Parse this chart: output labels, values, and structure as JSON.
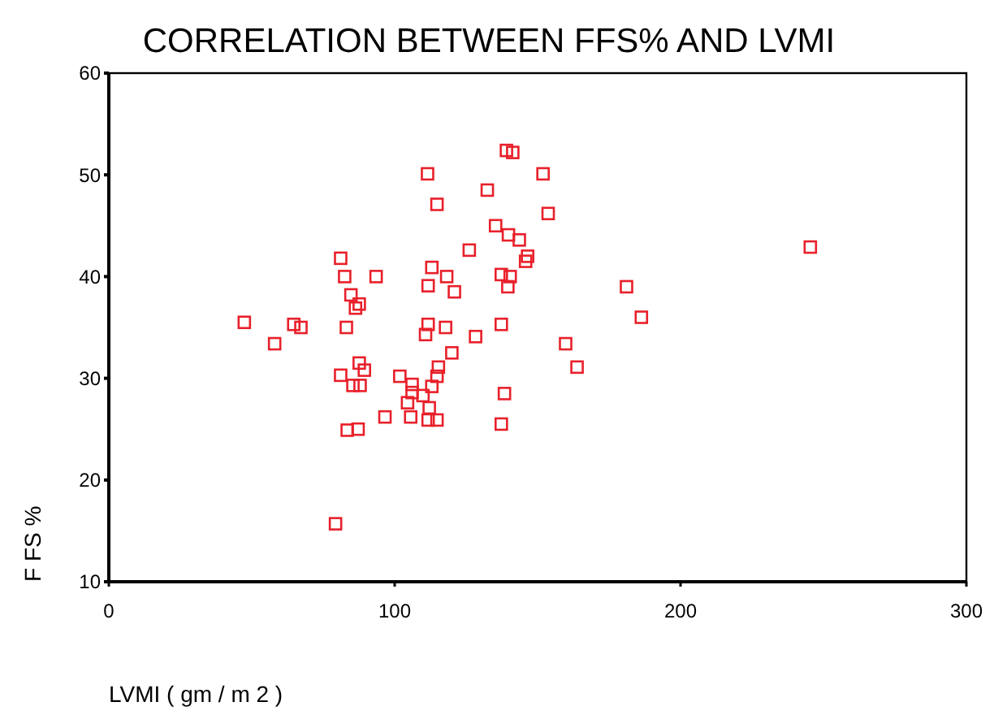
{
  "chart_data": {
    "type": "scatter",
    "title": "CORRELATION BETWEEN FFS% AND LVMI",
    "xlabel": "LVMI ( gm / m 2 )",
    "ylabel": "F FS %",
    "marker": "square",
    "grid": false,
    "xlim": [
      0,
      300
    ],
    "xticks": [
      0,
      100,
      200,
      300
    ],
    "ylim": [
      10,
      60
    ],
    "yticks": [
      10,
      20,
      30,
      40,
      50,
      60
    ],
    "series": [
      {
        "color": "#e8202a",
        "x": [
          47.4,
          58,
          64.7,
          67.2,
          81.1,
          82.5,
          93.5,
          84.7,
          87.6,
          86.3,
          83.1,
          81.1,
          87.6,
          89.4,
          85.4,
          87.9,
          83.4,
          87.2,
          79.3,
          96.6,
          101.8,
          106.1,
          106.1,
          104.5,
          109.9,
          105.6,
          112.1,
          111.7,
          114.8,
          113,
          114.8,
          115.3,
          120,
          111.5,
          114.8,
          113,
          111.7,
          111.7,
          110.8,
          118.2,
          120.9,
          117.8,
          126.1,
          128.3,
          132.4,
          135.3,
          139.1,
          141.3,
          151.9,
          153.7,
          139.8,
          143.6,
          146.5,
          145.8,
          137.3,
          140.4,
          139.6,
          137.3,
          138.4,
          137.3,
          159.8,
          163.8,
          181.1,
          186.3,
          245.4
        ],
        "values": [
          35.5,
          33.4,
          35.3,
          35,
          41.8,
          40,
          40,
          38.2,
          37.3,
          36.9,
          35,
          30.3,
          31.5,
          30.8,
          29.3,
          29.3,
          24.9,
          25,
          15.7,
          26.2,
          30.2,
          29.4,
          28.6,
          27.6,
          28.3,
          26.2,
          27.1,
          25.9,
          25.9,
          29.2,
          30.2,
          31.1,
          32.5,
          50.1,
          47.1,
          40.9,
          39.1,
          35.3,
          34.3,
          40,
          38.5,
          35,
          42.6,
          34.1,
          48.5,
          45,
          52.4,
          52.2,
          50.1,
          46.2,
          44.1,
          43.6,
          42,
          41.5,
          40.2,
          40,
          39,
          35.3,
          28.5,
          25.5,
          33.4,
          31.1,
          39,
          36,
          42.9
        ]
      }
    ]
  }
}
